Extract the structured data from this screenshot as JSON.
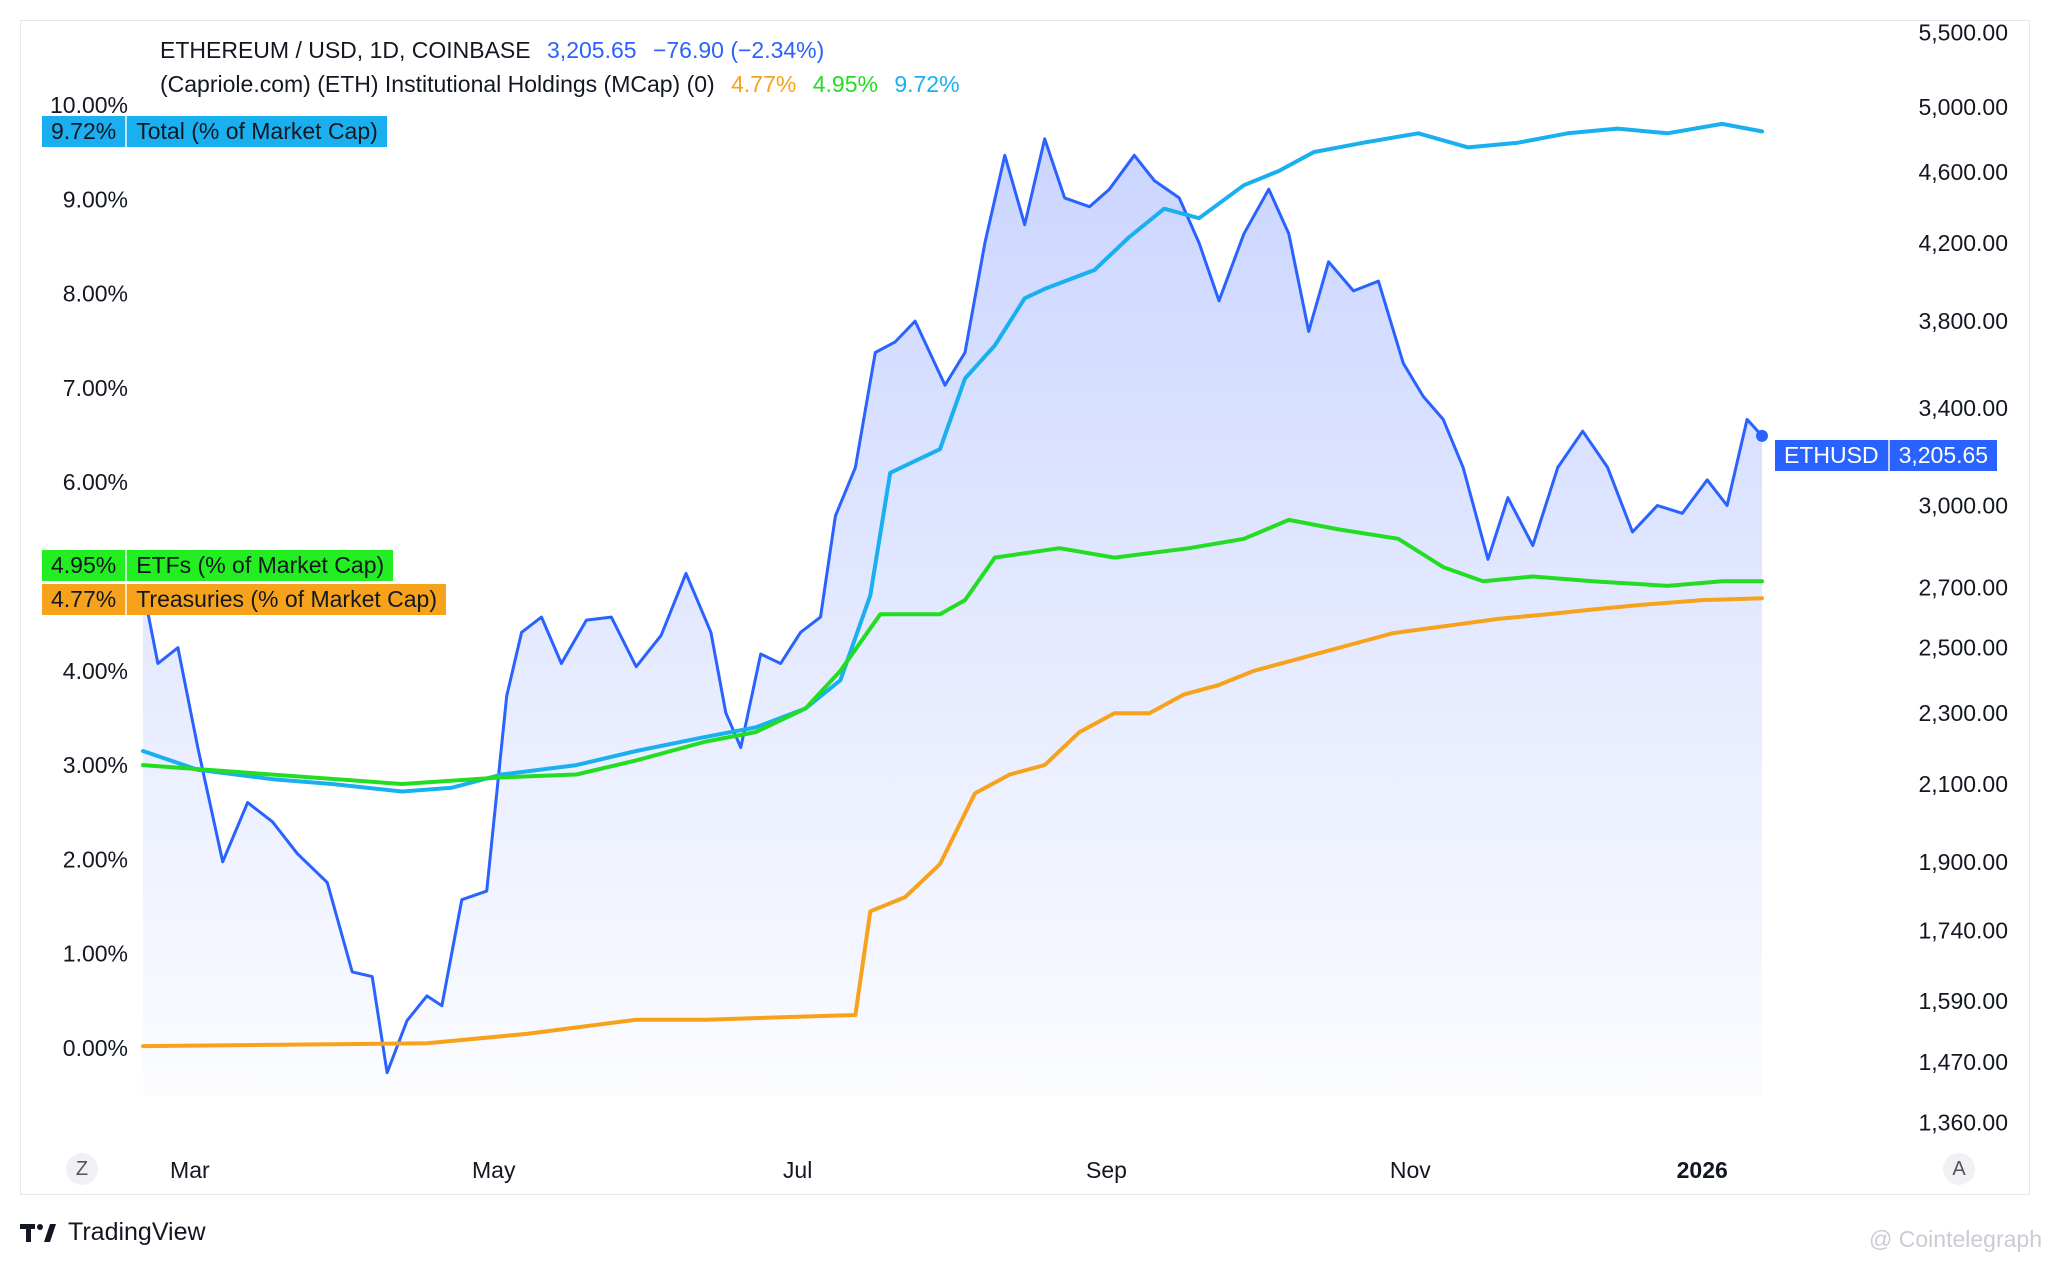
{
  "legend": {
    "price_line": {
      "symbol": "ETHEREUM / USD, 1D, COINBASE",
      "price": "3,205.65",
      "change": "−76.90 (−2.34%)",
      "color": "#2962ff"
    },
    "indicator_line": {
      "name": "(Capriole.com) (ETH) Institutional Holdings (MCap) (0)",
      "v1": "4.77%",
      "v2": "4.95%",
      "v3": "9.72%",
      "c1": "#f7a21b",
      "c2": "#22dd22",
      "c3": "#1ab0f0"
    }
  },
  "tags": {
    "total": {
      "value": "9.72%",
      "label": "Total (% of Market Cap)",
      "color": "#1ab0f0"
    },
    "etfs": {
      "value": "4.95%",
      "label": "ETFs (% of Market Cap)",
      "color": "#22ee22"
    },
    "treasuries": {
      "value": "4.77%",
      "label": "Treasuries (% of Market Cap)",
      "color": "#f7a21b"
    },
    "price": {
      "value": "3,205.65",
      "label": "ETHUSD",
      "color": "#2962ff"
    }
  },
  "axis_buttons": {
    "left": "Z",
    "right": "A"
  },
  "branding": {
    "logo": "TradingView",
    "watermark": "@ Cointelegraph"
  },
  "chart_data": {
    "type": "line",
    "x_ticks": [
      "Mar",
      "May",
      "Jul",
      "Sep",
      "Nov",
      "2026"
    ],
    "left_axis": {
      "ticks": [
        "0.00%",
        "1.00%",
        "2.00%",
        "3.00%",
        "4.00%",
        "6.00%",
        "7.00%",
        "8.00%",
        "9.00%",
        "10.00%"
      ],
      "ylim": [
        0,
        10
      ]
    },
    "right_axis": {
      "scale": "log",
      "ticks": [
        "1,360.00",
        "1,470.00",
        "1,590.00",
        "1,740.00",
        "1,900.00",
        "2,100.00",
        "2,300.00",
        "2,500.00",
        "2,700.00",
        "3,000.00",
        "3,400.00",
        "3,800.00",
        "4,200.00",
        "4,600.00",
        "5,000.00",
        "5,500.00"
      ],
      "ylim": [
        1360,
        5500
      ]
    },
    "series": [
      {
        "name": "ETHEREUM / USD",
        "axis": "right",
        "color": "#2962ff",
        "x": [
          "2025-02-22",
          "2025-02-25",
          "2025-03-01",
          "2025-03-05",
          "2025-03-10",
          "2025-03-15",
          "2025-03-20",
          "2025-03-25",
          "2025-03-31",
          "2025-04-05",
          "2025-04-09",
          "2025-04-12",
          "2025-04-16",
          "2025-04-20",
          "2025-04-23",
          "2025-04-27",
          "2025-05-02",
          "2025-05-06",
          "2025-05-09",
          "2025-05-13",
          "2025-05-17",
          "2025-05-22",
          "2025-05-27",
          "2025-06-01",
          "2025-06-06",
          "2025-06-11",
          "2025-06-16",
          "2025-06-19",
          "2025-06-22",
          "2025-06-26",
          "2025-06-30",
          "2025-07-04",
          "2025-07-08",
          "2025-07-11",
          "2025-07-15",
          "2025-07-19",
          "2025-07-23",
          "2025-07-27",
          "2025-08-02",
          "2025-08-06",
          "2025-08-10",
          "2025-08-14",
          "2025-08-18",
          "2025-08-22",
          "2025-08-26",
          "2025-08-31",
          "2025-09-04",
          "2025-09-09",
          "2025-09-13",
          "2025-09-18",
          "2025-09-22",
          "2025-09-26",
          "2025-10-01",
          "2025-10-06",
          "2025-10-10",
          "2025-10-14",
          "2025-10-18",
          "2025-10-23",
          "2025-10-28",
          "2025-11-02",
          "2025-11-06",
          "2025-11-10",
          "2025-11-14",
          "2025-11-19",
          "2025-11-23",
          "2025-11-28",
          "2025-12-03",
          "2025-12-08",
          "2025-12-13",
          "2025-12-18",
          "2025-12-23",
          "2025-12-28",
          "2026-01-02",
          "2026-01-06",
          "2026-01-10",
          "2026-01-13"
        ],
        "y": [
          2700,
          2450,
          2500,
          2200,
          1900,
          2050,
          2000,
          1920,
          1850,
          1650,
          1640,
          1450,
          1550,
          1600,
          1580,
          1810,
          1830,
          2350,
          2550,
          2600,
          2450,
          2590,
          2600,
          2440,
          2540,
          2750,
          2550,
          2300,
          2200,
          2480,
          2450,
          2550,
          2600,
          2960,
          3150,
          3650,
          3700,
          3800,
          3500,
          3650,
          4200,
          4700,
          4300,
          4800,
          4450,
          4400,
          4500,
          4700,
          4550,
          4450,
          4200,
          3900,
          4250,
          4500,
          4250,
          3750,
          4100,
          3950,
          4000,
          3600,
          3450,
          3350,
          3150,
          2800,
          3030,
          2850,
          3150,
          3300,
          3150,
          2900,
          3000,
          2970,
          3100,
          3000,
          3350,
          3280
        ]
      },
      {
        "name": "Total (% of Market Cap)",
        "axis": "left",
        "color": "#1ab0f0",
        "x": [
          "2025-02-22",
          "2025-03-05",
          "2025-03-20",
          "2025-04-01",
          "2025-04-15",
          "2025-04-25",
          "2025-05-05",
          "2025-05-20",
          "2025-06-01",
          "2025-06-15",
          "2025-06-25",
          "2025-07-05",
          "2025-07-12",
          "2025-07-18",
          "2025-07-22",
          "2025-08-01",
          "2025-08-06",
          "2025-08-12",
          "2025-08-18",
          "2025-08-22",
          "2025-09-01",
          "2025-09-08",
          "2025-09-15",
          "2025-09-22",
          "2025-10-01",
          "2025-10-08",
          "2025-10-15",
          "2025-10-25",
          "2025-11-05",
          "2025-11-15",
          "2025-11-25",
          "2025-12-05",
          "2025-12-15",
          "2025-12-25",
          "2026-01-05",
          "2026-01-13"
        ],
        "y": [
          3.15,
          2.95,
          2.85,
          2.8,
          2.72,
          2.76,
          2.9,
          3.0,
          3.15,
          3.3,
          3.4,
          3.6,
          3.9,
          4.8,
          6.1,
          6.35,
          7.1,
          7.45,
          7.95,
          8.05,
          8.25,
          8.6,
          8.9,
          8.8,
          9.15,
          9.3,
          9.5,
          9.6,
          9.7,
          9.55,
          9.6,
          9.7,
          9.75,
          9.7,
          9.8,
          9.72
        ]
      },
      {
        "name": "ETFs (% of Market Cap)",
        "axis": "left",
        "color": "#22dd22",
        "x": [
          "2025-02-22",
          "2025-04-15",
          "2025-05-05",
          "2025-05-20",
          "2025-06-01",
          "2025-06-15",
          "2025-06-25",
          "2025-07-05",
          "2025-07-12",
          "2025-07-20",
          "2025-08-01",
          "2025-08-06",
          "2025-08-12",
          "2025-08-25",
          "2025-09-05",
          "2025-09-20",
          "2025-10-01",
          "2025-10-10",
          "2025-10-20",
          "2025-11-01",
          "2025-11-10",
          "2025-11-18",
          "2025-11-28",
          "2025-12-10",
          "2025-12-25",
          "2026-01-05",
          "2026-01-13"
        ],
        "y": [
          3.0,
          2.8,
          2.87,
          2.9,
          3.05,
          3.25,
          3.35,
          3.6,
          4.0,
          4.6,
          4.6,
          4.75,
          5.2,
          5.3,
          5.2,
          5.3,
          5.4,
          5.6,
          5.5,
          5.4,
          5.1,
          4.95,
          5.0,
          4.95,
          4.9,
          4.95,
          4.95
        ]
      },
      {
        "name": "Treasuries (% of Market Cap)",
        "axis": "left",
        "color": "#f7a21b",
        "x": [
          "2025-02-22",
          "2025-04-20",
          "2025-05-10",
          "2025-06-01",
          "2025-06-15",
          "2025-07-15",
          "2025-07-18",
          "2025-07-25",
          "2025-08-01",
          "2025-08-08",
          "2025-08-15",
          "2025-08-22",
          "2025-08-29",
          "2025-09-05",
          "2025-09-12",
          "2025-09-19",
          "2025-09-26",
          "2025-10-03",
          "2025-10-10",
          "2025-10-17",
          "2025-10-24",
          "2025-10-31",
          "2025-11-07",
          "2025-11-14",
          "2025-11-21",
          "2025-12-01",
          "2025-12-10",
          "2025-12-20",
          "2026-01-01",
          "2026-01-13"
        ],
        "y": [
          0.02,
          0.05,
          0.15,
          0.3,
          0.3,
          0.35,
          1.45,
          1.6,
          1.95,
          2.7,
          2.9,
          3.0,
          3.35,
          3.55,
          3.55,
          3.75,
          3.85,
          4.0,
          4.1,
          4.2,
          4.3,
          4.4,
          4.45,
          4.5,
          4.55,
          4.6,
          4.65,
          4.7,
          4.75,
          4.77
        ]
      }
    ]
  }
}
